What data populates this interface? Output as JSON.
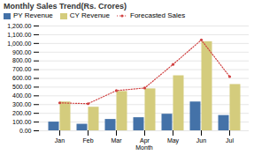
{
  "chart_data": {
    "type": "bar",
    "title": "Monthly Sales Trend(Rs. Crores)",
    "xlabel": "Month",
    "categories": [
      "Jan",
      "Feb",
      "Mar",
      "Apr",
      "May",
      "Jun",
      "Jul"
    ],
    "series": [
      {
        "name": "PY Revenue",
        "color": "#4472a8",
        "values": [
          100,
          75,
          130,
          150,
          190,
          330,
          175
        ]
      },
      {
        "name": "CY Revenue",
        "color": "#d4cc7d",
        "values": [
          330,
          270,
          450,
          480,
          630,
          1020,
          530
        ]
      },
      {
        "name": "Forecasted Sales",
        "type": "line",
        "color": "#d04040",
        "marker": "circle",
        "line_style": "dotted",
        "values": [
          320,
          310,
          460,
          490,
          760,
          1040,
          620
        ]
      }
    ],
    "ylim": [
      0,
      1200
    ],
    "yticks": [
      {
        "value": 0,
        "label": "0.00"
      },
      {
        "value": 100,
        "label": "100.00"
      },
      {
        "value": 200,
        "label": "200.00"
      },
      {
        "value": 300,
        "label": "300.00"
      },
      {
        "value": 400,
        "label": "400.00"
      },
      {
        "value": 500,
        "label": "500.00"
      },
      {
        "value": 600,
        "label": "600.00"
      },
      {
        "value": 700,
        "label": "700.00"
      },
      {
        "value": 800,
        "label": "800.00"
      },
      {
        "value": 900,
        "label": "900.00"
      },
      {
        "value": 1000,
        "label": "1,000.00"
      },
      {
        "value": 1100,
        "label": "1,100.00"
      },
      {
        "value": 1200,
        "label": "1,200.00"
      }
    ],
    "grid": true,
    "legend": "top-left"
  }
}
